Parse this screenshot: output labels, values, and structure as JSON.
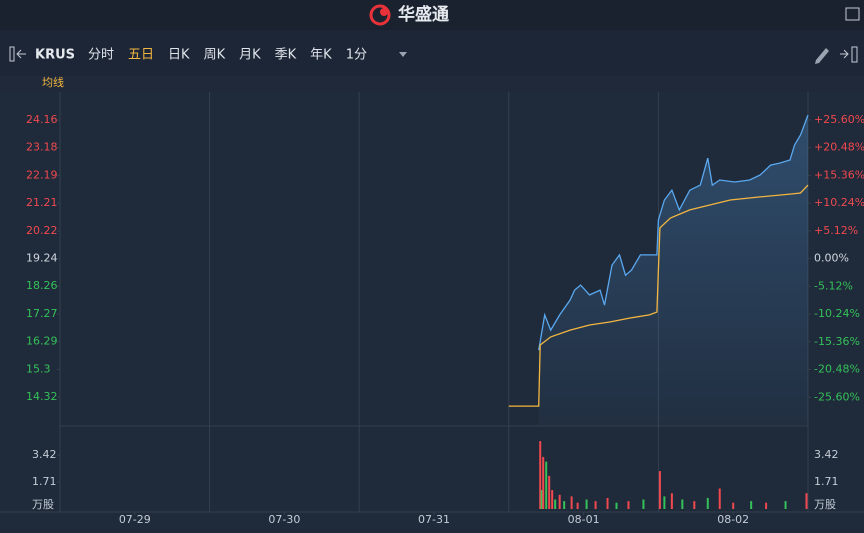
{
  "app": {
    "title": "华盛通"
  },
  "toolbar": {
    "symbol": "KRUS",
    "tabs": [
      "分时",
      "五日",
      "日K",
      "周K",
      "月K",
      "季K",
      "年K",
      "1分"
    ],
    "active_tab": 1,
    "indicator": "均线"
  },
  "chart_data": [
    {
      "type": "line",
      "xlim": [
        0,
        5
      ],
      "xticks": [
        {
          "value": 0.5,
          "label": "07-29"
        },
        {
          "value": 1.5,
          "label": "07-30"
        },
        {
          "value": 2.5,
          "label": "07-31"
        },
        {
          "value": 3.5,
          "label": "08-01"
        },
        {
          "value": 4.5,
          "label": "08-02"
        }
      ],
      "ylim": [
        13.33,
        25.05
      ],
      "yticks": [
        24.16,
        23.18,
        22.19,
        21.21,
        20.22,
        19.24,
        18.26,
        17.27,
        16.29,
        15.3,
        14.32
      ],
      "y2lim": [
        -30.72,
        30.2
      ],
      "y2ticks": [
        {
          "value": 25.6,
          "label": "+25.60%"
        },
        {
          "value": 20.48,
          "label": "+20.48%"
        },
        {
          "value": 15.36,
          "label": "+15.36%"
        },
        {
          "value": 10.24,
          "label": "+10.24%"
        },
        {
          "value": 5.12,
          "label": "+5.12%"
        },
        {
          "value": 0,
          "label": "0.00%"
        },
        {
          "value": -5.12,
          "label": "-5.12%"
        },
        {
          "value": -10.24,
          "label": "-10.24%"
        },
        {
          "value": -15.36,
          "label": "-15.36%"
        },
        {
          "value": -20.48,
          "label": "-20.48%"
        },
        {
          "value": -25.6,
          "label": "-25.60%"
        }
      ],
      "up_color": "#f0494f",
      "down_color": "#35c15a",
      "flat_color": "#d0d6de",
      "series": [
        {
          "color": "#5aa8f0",
          "area": true,
          "x": [
            3.2,
            3.24,
            3.28,
            3.34,
            3.41,
            3.44,
            3.48,
            3.54,
            3.61,
            3.64,
            3.69,
            3.74,
            3.78,
            3.82,
            3.88,
            3.94,
            3.99,
            4.0,
            4.04,
            4.09,
            4.14,
            4.21,
            4.28,
            4.33,
            4.36,
            4.41,
            4.51,
            4.61,
            4.68,
            4.75,
            4.81,
            4.88,
            4.91,
            4.95,
            5.0
          ],
          "values": [
            15.99,
            17.24,
            16.7,
            17.24,
            17.77,
            18.12,
            18.3,
            17.95,
            18.12,
            17.59,
            19.01,
            19.37,
            18.65,
            18.83,
            19.37,
            19.37,
            19.37,
            20.61,
            21.32,
            21.67,
            20.97,
            21.67,
            21.85,
            22.81,
            21.85,
            22.03,
            21.96,
            22.03,
            22.21,
            22.56,
            22.63,
            22.74,
            23.27,
            23.63,
            24.34
          ]
        },
        {
          "color": "#f3b640",
          "area": false,
          "x": [
            3.0,
            3.2,
            3.21,
            3.28,
            3.41,
            3.54,
            3.68,
            3.81,
            3.94,
            3.99,
            4.01,
            4.08,
            4.21,
            4.34,
            4.48,
            4.68,
            4.88,
            4.95,
            5.0
          ],
          "values": [
            14.0,
            14.0,
            16.17,
            16.46,
            16.7,
            16.88,
            16.99,
            17.13,
            17.24,
            17.34,
            20.33,
            20.68,
            20.97,
            21.14,
            21.32,
            21.43,
            21.53,
            21.57,
            21.85
          ]
        }
      ]
    },
    {
      "type": "bar",
      "unit": "万股",
      "xlim": [
        0,
        5
      ],
      "ylim": [
        0,
        5.13
      ],
      "yticks": [
        3.42,
        1.71
      ],
      "x": [
        3.21,
        3.22,
        3.23,
        3.25,
        3.27,
        3.29,
        3.31,
        3.34,
        3.37,
        3.42,
        3.46,
        3.52,
        3.58,
        3.66,
        3.72,
        3.8,
        3.9,
        4.01,
        4.04,
        4.09,
        4.16,
        4.24,
        4.33,
        4.41,
        4.5,
        4.62,
        4.72,
        4.85,
        4.99
      ],
      "values": [
        4.3,
        1.2,
        3.3,
        3.0,
        2.1,
        1.2,
        0.6,
        0.9,
        0.5,
        0.8,
        0.4,
        0.6,
        0.5,
        0.7,
        0.4,
        0.5,
        0.6,
        2.4,
        0.8,
        1.0,
        0.6,
        0.5,
        0.7,
        1.3,
        0.4,
        0.5,
        0.4,
        0.5,
        1.0
      ],
      "colors": [
        "#f0494f",
        "#35c15a",
        "#f0494f",
        "#35c15a",
        "#f0494f",
        "#f0494f",
        "#35c15a",
        "#f0494f",
        "#35c15a",
        "#f0494f",
        "#f0494f",
        "#35c15a",
        "#f0494f",
        "#f0494f",
        "#35c15a",
        "#f0494f",
        "#35c15a",
        "#f0494f",
        "#35c15a",
        "#f0494f",
        "#35c15a",
        "#f0494f",
        "#35c15a",
        "#f0494f",
        "#f0494f",
        "#35c15a",
        "#f0494f",
        "#35c15a",
        "#f0494f"
      ]
    }
  ]
}
